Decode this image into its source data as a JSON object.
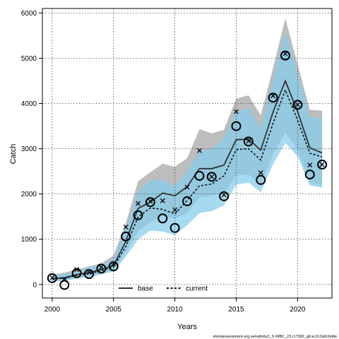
{
  "chart_data": {
    "type": "line",
    "xlabel": "Years",
    "ylabel": "Catch",
    "xlim": [
      1999.2,
      2022.8
    ],
    "ylim": [
      -300,
      6100
    ],
    "x_ticks": [
      2000,
      2005,
      2010,
      2015,
      2020
    ],
    "y_ticks": [
      0,
      1000,
      2000,
      3000,
      4000,
      5000,
      6000
    ],
    "grid": true,
    "legend_position": "bottom-center",
    "footnote": "stockassessment.org,sensitivity2_S-WBC_23,r17582_git:ec2c2a0c6dde",
    "x": [
      2000,
      2001,
      2002,
      2003,
      2004,
      2005,
      2006,
      2007,
      2008,
      2009,
      2010,
      2011,
      2012,
      2013,
      2014,
      2015,
      2016,
      2017,
      2018,
      2019,
      2020,
      2021,
      2022
    ],
    "observed": [
      140,
      -10,
      250,
      230,
      350,
      400,
      1060,
      1530,
      1820,
      1460,
      1250,
      1840,
      2400,
      2380,
      1950,
      3500,
      3160,
      2310,
      4130,
      5060,
      3970,
      2430,
      2650
    ],
    "cross_points": [
      150,
      100,
      330,
      270,
      380,
      460,
      1270,
      1790,
      1840,
      1850,
      1650,
      2150,
      2960,
      2380,
      1980,
      3820,
      3170,
      2470,
      4170,
      5100,
      3970,
      2640,
      2650
    ],
    "series": [
      {
        "name": "base",
        "color": "#333333",
        "band_color": "#bdbdbd",
        "line_style": "solid",
        "values": [
          130,
          150,
          220,
          260,
          330,
          420,
          950,
          1680,
          1820,
          2020,
          1960,
          2160,
          2560,
          2560,
          2640,
          3200,
          3210,
          2970,
          3810,
          4500,
          3820,
          3020,
          2910
        ],
        "lower": [
          80,
          90,
          150,
          180,
          250,
          320,
          720,
          1180,
          1380,
          1520,
          1460,
          1580,
          1920,
          1960,
          2010,
          2420,
          2430,
          2200,
          2880,
          3350,
          2980,
          2250,
          2200
        ],
        "upper": [
          220,
          260,
          330,
          400,
          470,
          640,
          1350,
          2280,
          2480,
          2670,
          2600,
          2790,
          3430,
          3340,
          3420,
          4110,
          4180,
          3740,
          4780,
          5880,
          4870,
          3860,
          3840
        ]
      },
      {
        "name": "current",
        "color": "#111111",
        "band_color": "#87ceeb",
        "line_style": "dashed",
        "values": [
          120,
          140,
          200,
          240,
          300,
          390,
          840,
          1490,
          1690,
          1660,
          1560,
          1860,
          2180,
          2220,
          2400,
          2980,
          3000,
          2750,
          3560,
          4300,
          3630,
          2900,
          2820
        ],
        "lower": [
          70,
          80,
          130,
          160,
          220,
          290,
          610,
          1000,
          1190,
          1170,
          1090,
          1310,
          1580,
          1620,
          1750,
          2210,
          2250,
          2040,
          2660,
          3130,
          2830,
          2190,
          2140
        ],
        "upper": [
          190,
          230,
          300,
          370,
          430,
          560,
          1210,
          2050,
          2300,
          2310,
          2170,
          2500,
          2940,
          3000,
          3230,
          3830,
          3900,
          3450,
          4520,
          5580,
          4690,
          3700,
          3680
        ]
      }
    ]
  }
}
